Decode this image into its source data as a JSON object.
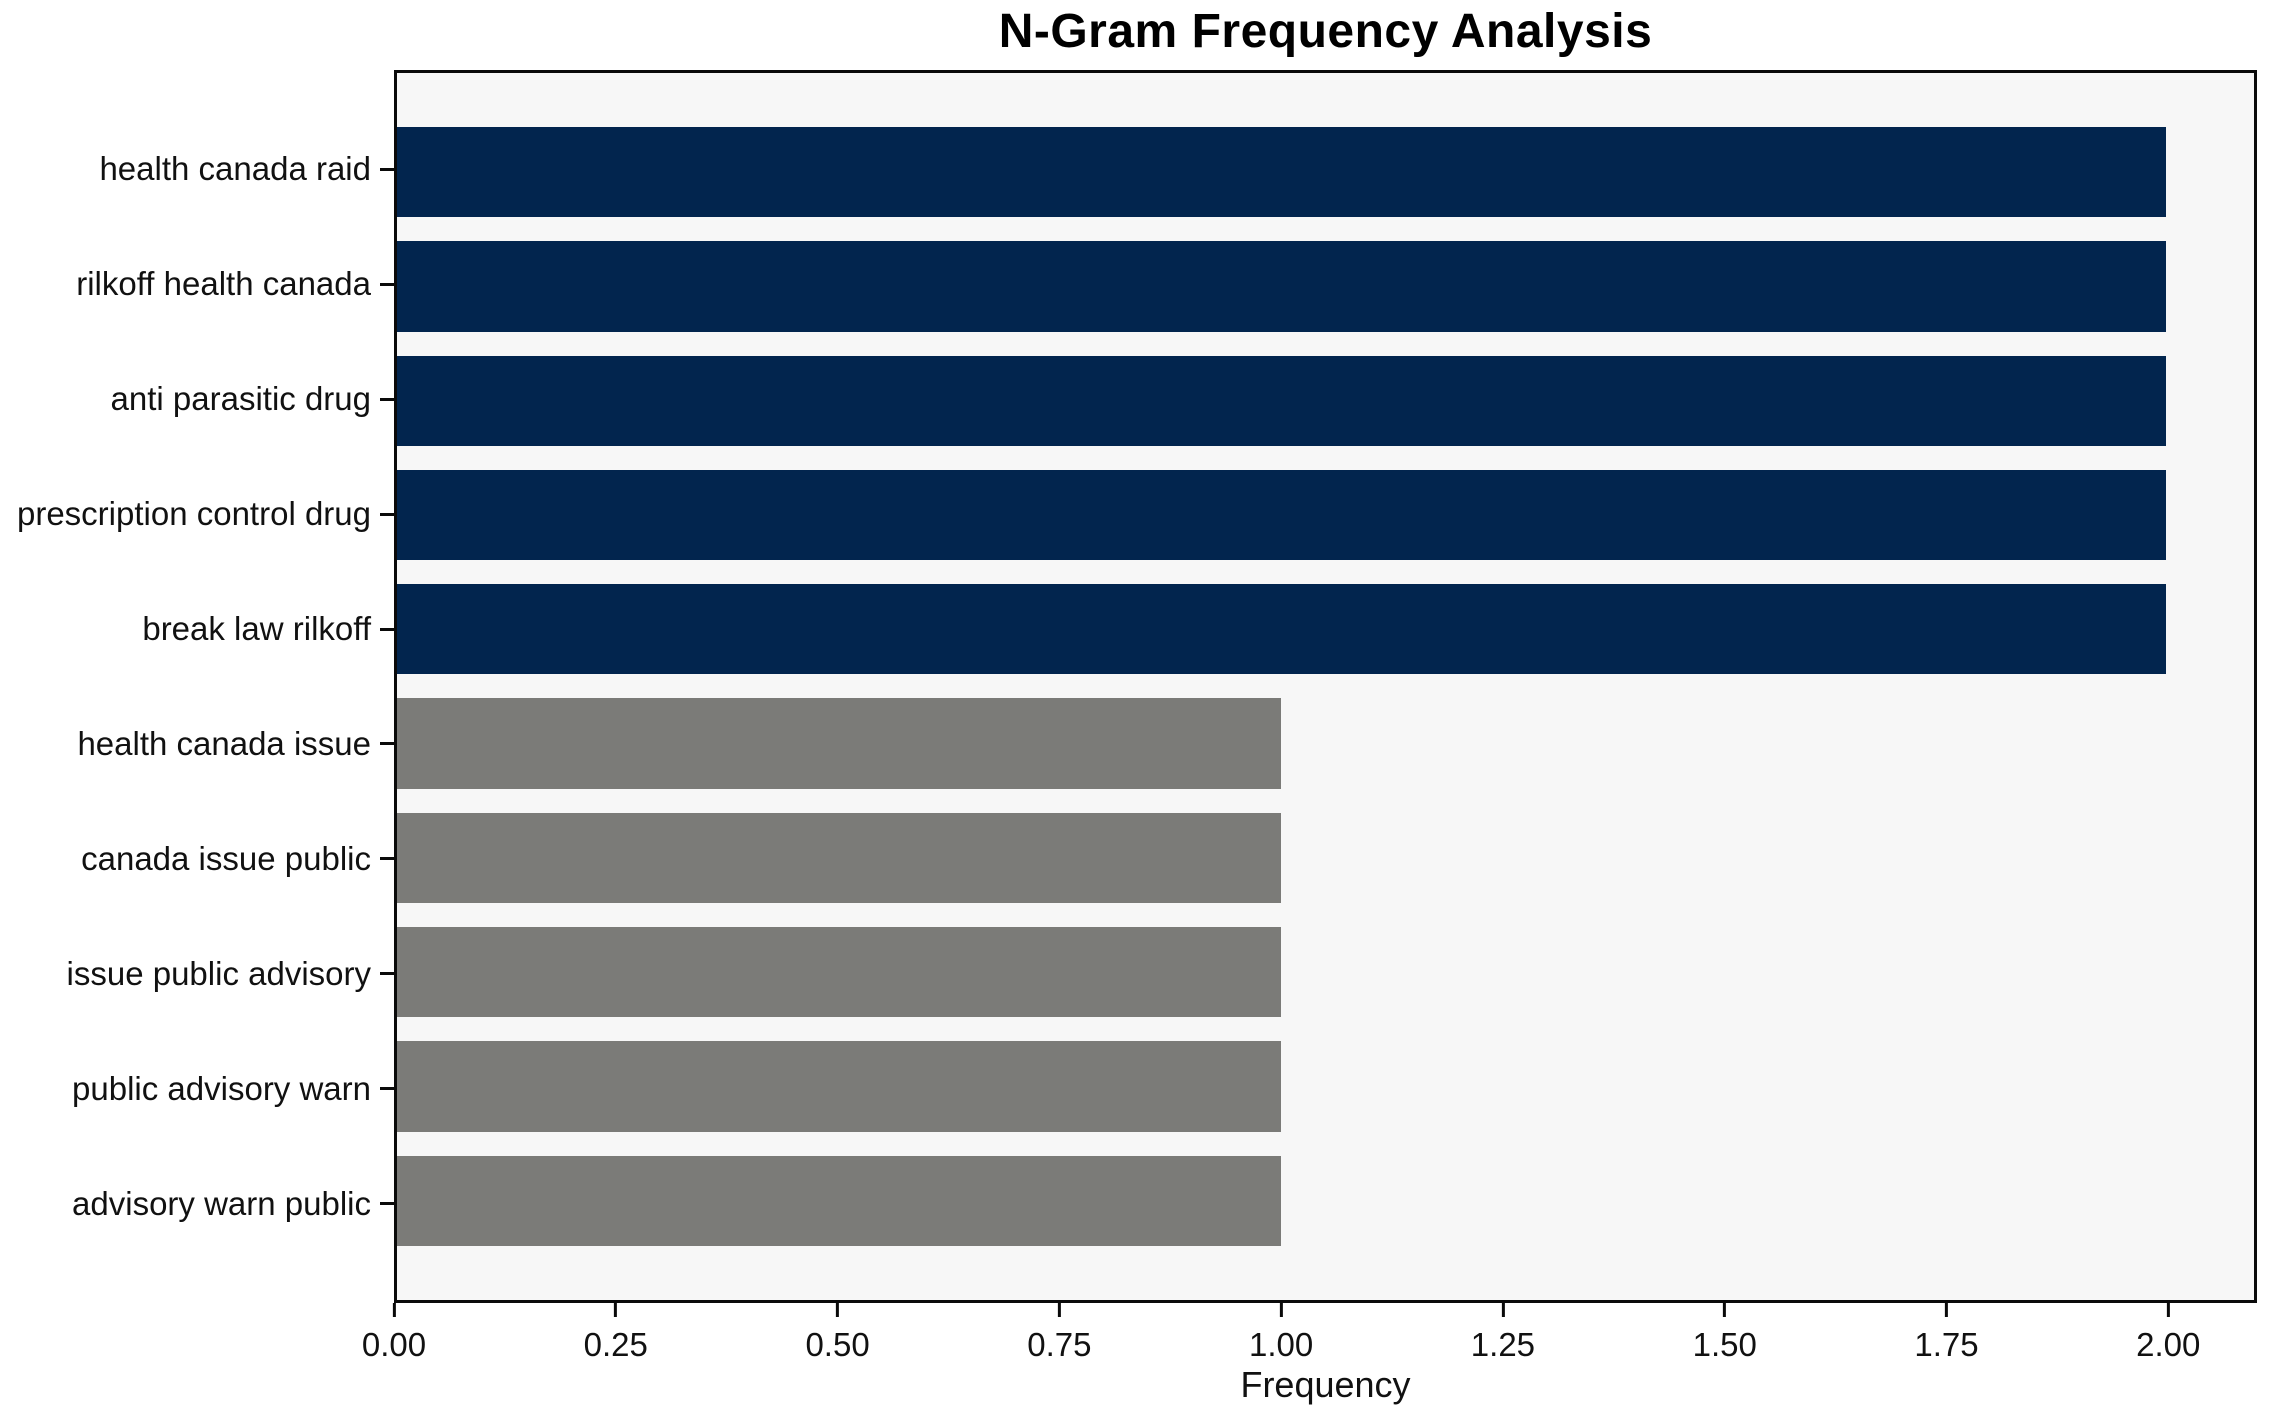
{
  "chart_data": {
    "type": "bar",
    "orientation": "horizontal",
    "title": "N-Gram Frequency Analysis",
    "xlabel": "Frequency",
    "ylabel": "",
    "categories": [
      "health canada raid",
      "rilkoff health canada",
      "anti parasitic drug",
      "prescription control drug",
      "break law rilkoff",
      "health canada issue",
      "canada issue public",
      "issue public advisory",
      "public advisory warn",
      "advisory warn public"
    ],
    "values": [
      2,
      2,
      2,
      2,
      2,
      1,
      1,
      1,
      1,
      1
    ],
    "bar_colors": [
      "#02254e",
      "#02254e",
      "#02254e",
      "#02254e",
      "#02254e",
      "#7b7b78",
      "#7b7b78",
      "#7b7b78",
      "#7b7b78",
      "#7b7b78"
    ],
    "xlim": [
      0,
      2.1
    ],
    "xtick_values": [
      0,
      0.25,
      0.5,
      0.75,
      1.0,
      1.25,
      1.5,
      1.75,
      2.0
    ],
    "xtick_labels": [
      "0.00",
      "0.25",
      "0.50",
      "0.75",
      "1.00",
      "1.25",
      "1.50",
      "1.75",
      "2.00"
    ],
    "grid": false,
    "legend": null,
    "colors": {
      "plot_background": "#f7f7f7",
      "figure_background": "#ffffff",
      "spine": "#0a0a0a",
      "high_frequency_bar": "#02254e",
      "low_frequency_bar": "#7b7b78",
      "text": "#111111"
    }
  }
}
